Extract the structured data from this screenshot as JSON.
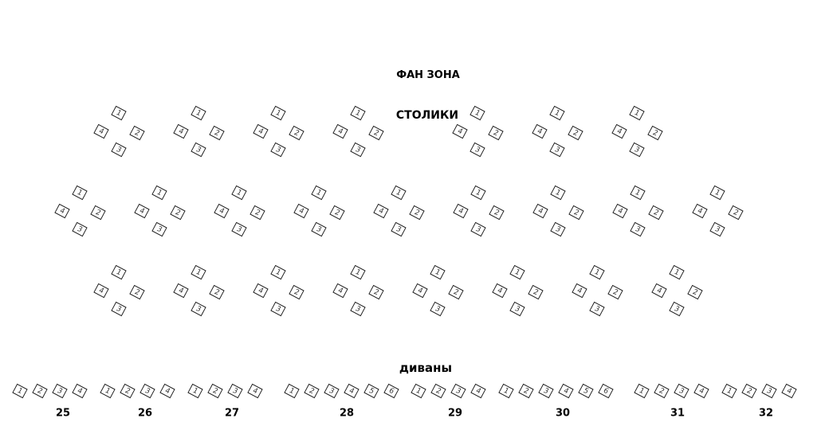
{
  "titles": {
    "fan_zone": "ФАН ЗОНА",
    "tables": "СТОЛИКИ",
    "sofas": "диваны"
  },
  "tables": {
    "seat_labels": [
      "1",
      "2",
      "3",
      "4"
    ],
    "rows": [
      {
        "count": 7
      },
      {
        "count": 9
      },
      {
        "count": 8
      }
    ]
  },
  "sofas": [
    {
      "number": "25",
      "seats": [
        "1",
        "2",
        "3",
        "4"
      ]
    },
    {
      "number": "26",
      "seats": [
        "1",
        "2",
        "3",
        "4"
      ]
    },
    {
      "number": "27",
      "seats": [
        "1",
        "2",
        "3",
        "4"
      ]
    },
    {
      "number": "28",
      "seats": [
        "1",
        "2",
        "3",
        "4",
        "5",
        "6"
      ]
    },
    {
      "number": "29",
      "seats": [
        "1",
        "2",
        "3",
        "4"
      ]
    },
    {
      "number": "30",
      "seats": [
        "1",
        "2",
        "3",
        "4",
        "5",
        "6"
      ]
    },
    {
      "number": "31",
      "seats": [
        "1",
        "2",
        "3",
        "4"
      ]
    },
    {
      "number": "32",
      "seats": [
        "1",
        "2",
        "3",
        "4"
      ]
    }
  ]
}
